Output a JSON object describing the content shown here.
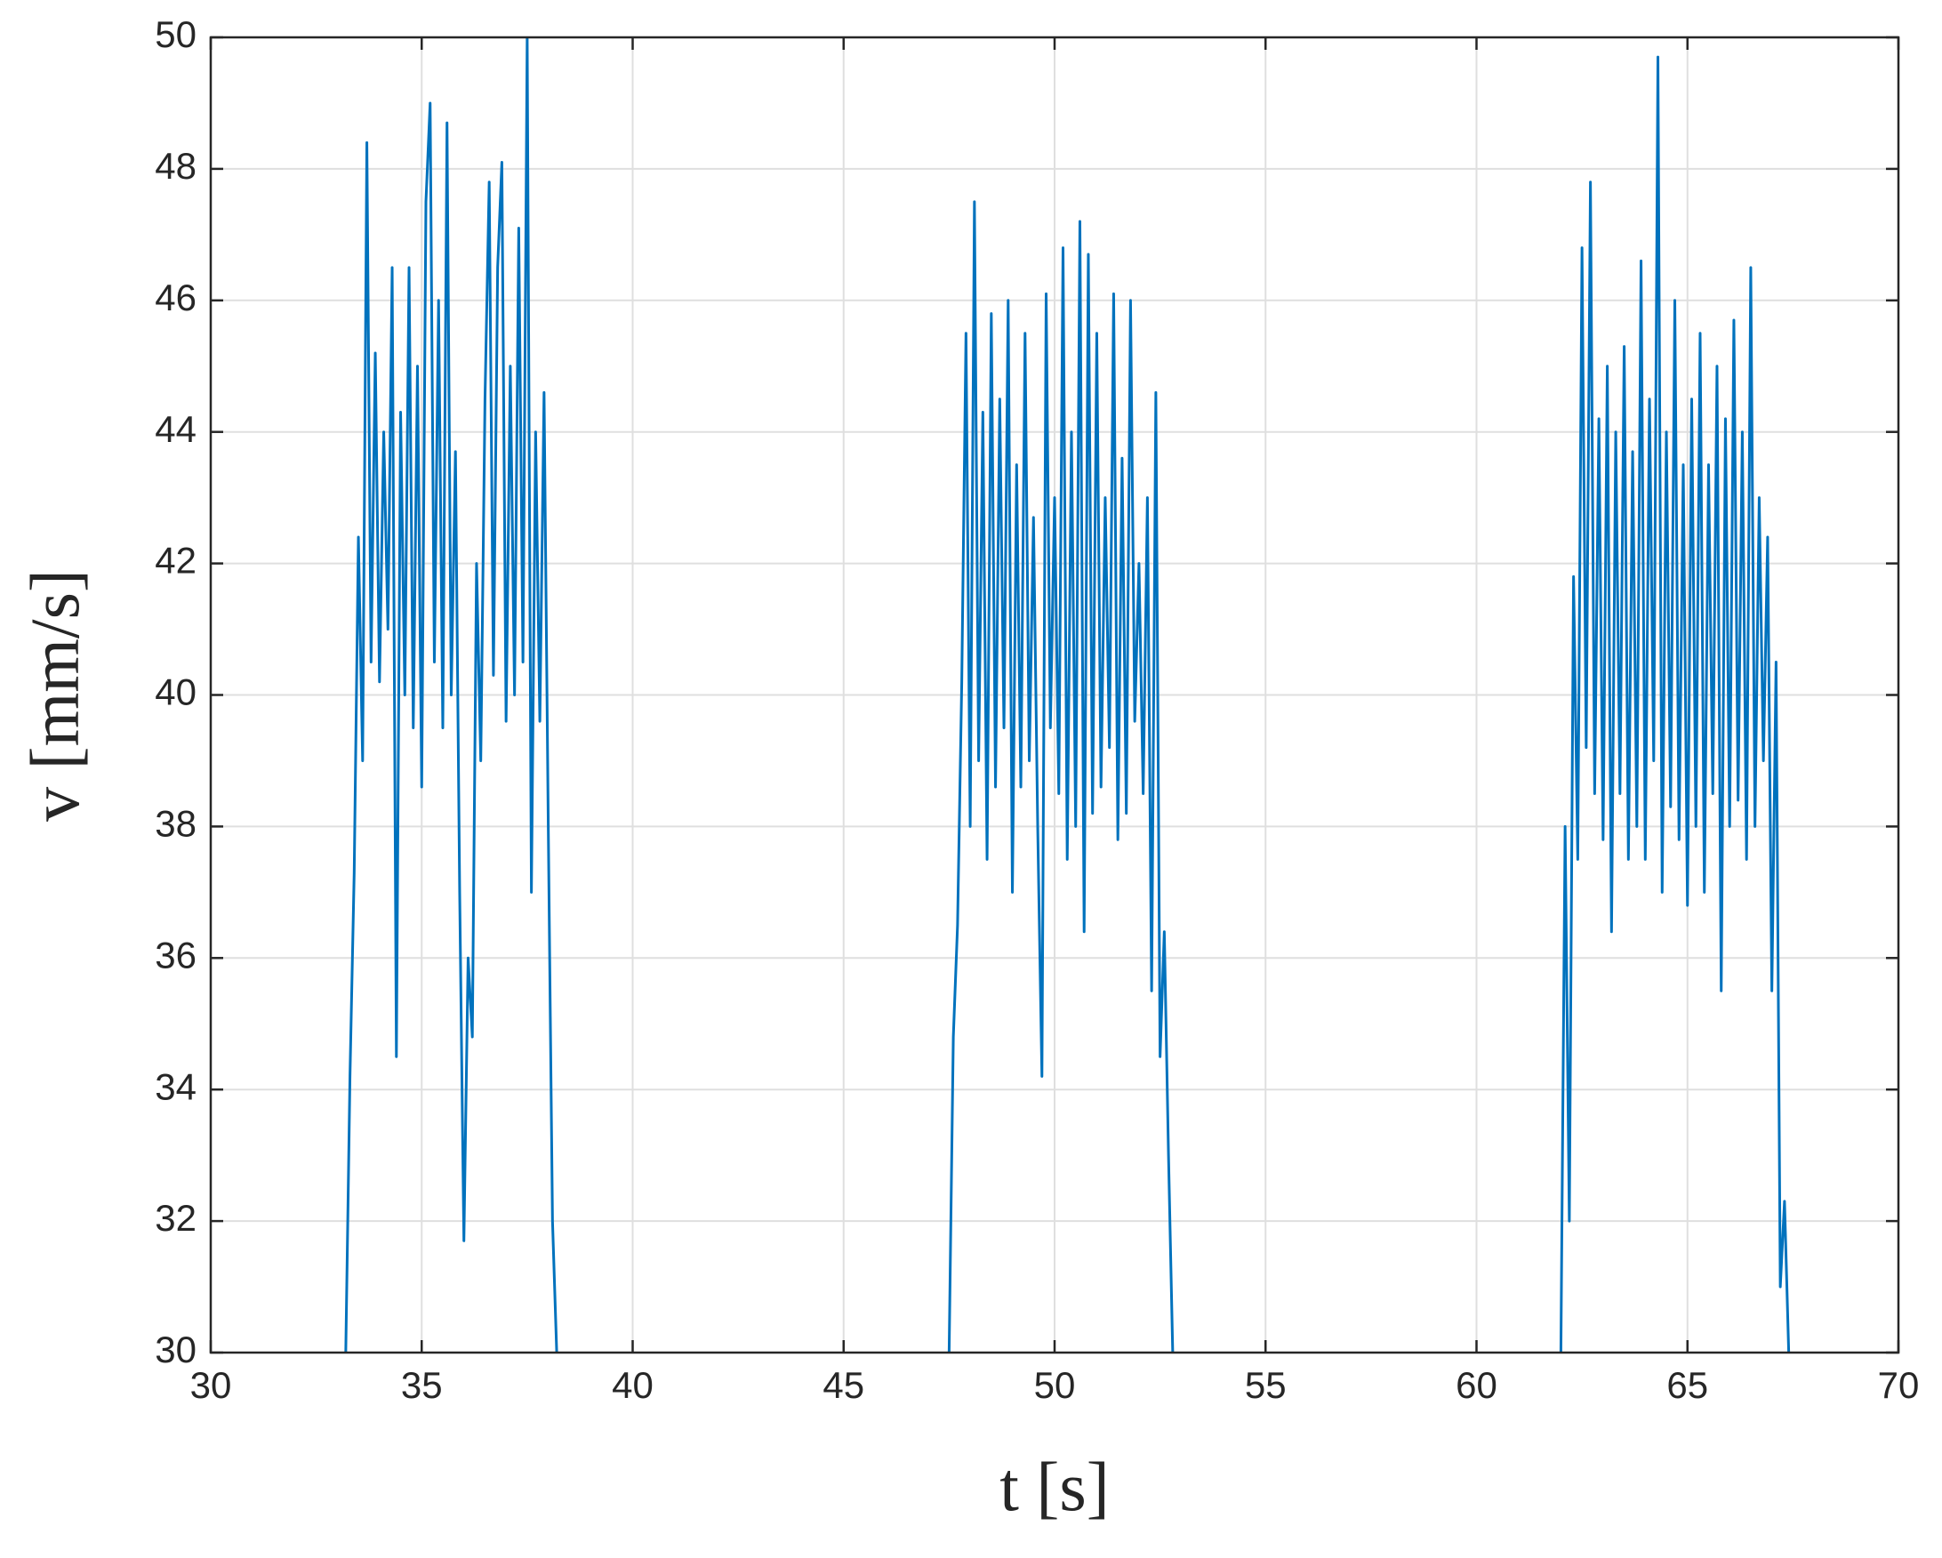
{
  "chart_data": {
    "type": "line",
    "xlabel": "t [s]",
    "ylabel": "v [mm/s]",
    "xlim": [
      30,
      70
    ],
    "xticks": [
      30,
      35,
      40,
      45,
      50,
      55,
      60,
      65,
      70
    ],
    "ylim": [
      30,
      50
    ],
    "yticks": [
      30,
      32,
      34,
      36,
      38,
      40,
      42,
      44,
      46,
      48,
      50
    ],
    "grid": true,
    "color": "#0072bd",
    "x": [
      33.2,
      33.3,
      33.4,
      33.5,
      33.6,
      33.7,
      33.8,
      33.9,
      34.0,
      34.1,
      34.2,
      34.3,
      34.4,
      34.5,
      34.6,
      34.7,
      34.8,
      34.9,
      35.0,
      35.1,
      35.2,
      35.3,
      35.4,
      35.5,
      35.6,
      35.7,
      35.8,
      35.9,
      36.0,
      36.1,
      36.2,
      36.3,
      36.4,
      36.5,
      36.6,
      36.7,
      36.8,
      36.9,
      37.0,
      37.1,
      37.2,
      37.3,
      37.4,
      37.5,
      37.6,
      37.7,
      37.8,
      37.9,
      38.0,
      38.1,
      38.2,
      45,
      47.5,
      47.6,
      47.7,
      47.8,
      47.9,
      48.0,
      48.1,
      48.2,
      48.3,
      48.4,
      48.5,
      48.6,
      48.7,
      48.8,
      48.9,
      49.0,
      49.1,
      49.2,
      49.3,
      49.4,
      49.5,
      49.6,
      49.7,
      49.8,
      49.9,
      50.0,
      50.1,
      50.2,
      50.3,
      50.4,
      50.5,
      50.6,
      50.7,
      50.8,
      50.9,
      51.0,
      51.1,
      51.2,
      51.3,
      51.4,
      51.5,
      51.6,
      51.7,
      51.8,
      51.9,
      52.0,
      52.1,
      52.2,
      52.3,
      52.4,
      52.5,
      52.6,
      52.7,
      52.8,
      55,
      62.0,
      62.1,
      62.2,
      62.3,
      62.4,
      62.5,
      62.6,
      62.7,
      62.8,
      62.9,
      63.0,
      63.1,
      63.2,
      63.3,
      63.4,
      63.5,
      63.6,
      63.7,
      63.8,
      63.9,
      64.0,
      64.1,
      64.2,
      64.3,
      64.4,
      64.5,
      64.6,
      64.7,
      64.8,
      64.9,
      65.0,
      65.1,
      65.2,
      65.3,
      65.4,
      65.5,
      65.6,
      65.7,
      65.8,
      65.9,
      66.0,
      66.1,
      66.2,
      66.3,
      66.4,
      66.5,
      66.6,
      66.7,
      66.8,
      66.9,
      67.0,
      67.1,
      67.2,
      67.3,
      67.4
    ],
    "values": [
      30,
      34.2,
      37.3,
      42.4,
      39.0,
      48.4,
      40.5,
      45.2,
      40.2,
      44.0,
      41.0,
      46.5,
      34.5,
      44.3,
      40.0,
      46.5,
      39.5,
      45.0,
      38.6,
      47.5,
      49.0,
      40.5,
      46.0,
      39.5,
      48.7,
      40.0,
      43.7,
      37.0,
      31.7,
      36.0,
      34.8,
      42.0,
      39.0,
      44.5,
      47.8,
      40.3,
      46.5,
      48.1,
      39.6,
      45.0,
      40.0,
      47.1,
      40.5,
      50.0,
      37.0,
      44.0,
      39.6,
      44.6,
      38.0,
      32.0,
      30,
      null,
      30,
      34.8,
      36.5,
      40.2,
      45.5,
      38.0,
      47.5,
      39.0,
      44.3,
      37.5,
      45.8,
      38.6,
      44.5,
      39.5,
      46.0,
      37.0,
      43.5,
      38.6,
      45.5,
      39.0,
      42.7,
      38.0,
      34.2,
      46.1,
      39.5,
      43.0,
      38.5,
      46.8,
      37.5,
      44.0,
      38.0,
      47.2,
      36.4,
      46.7,
      38.2,
      45.5,
      38.6,
      43.0,
      39.2,
      46.1,
      37.8,
      43.6,
      38.2,
      46.0,
      39.6,
      42.0,
      38.5,
      43.0,
      35.5,
      44.6,
      34.5,
      36.4,
      33.0,
      30,
      null,
      30,
      38.0,
      32.0,
      41.8,
      37.5,
      46.8,
      39.2,
      47.8,
      38.5,
      44.2,
      37.8,
      45.0,
      36.4,
      44.0,
      38.5,
      45.3,
      37.5,
      43.7,
      38.0,
      46.6,
      37.5,
      44.5,
      39.0,
      49.7,
      37.0,
      44.0,
      38.3,
      46.0,
      37.8,
      43.5,
      36.8,
      44.5,
      38.0,
      45.5,
      37.0,
      43.5,
      38.5,
      45.0,
      35.5,
      44.2,
      38.0,
      45.7,
      38.4,
      44.0,
      37.5,
      46.5,
      38.0,
      43.0,
      39.0,
      42.4,
      35.5,
      40.5,
      31.0,
      32.3,
      30
    ]
  }
}
